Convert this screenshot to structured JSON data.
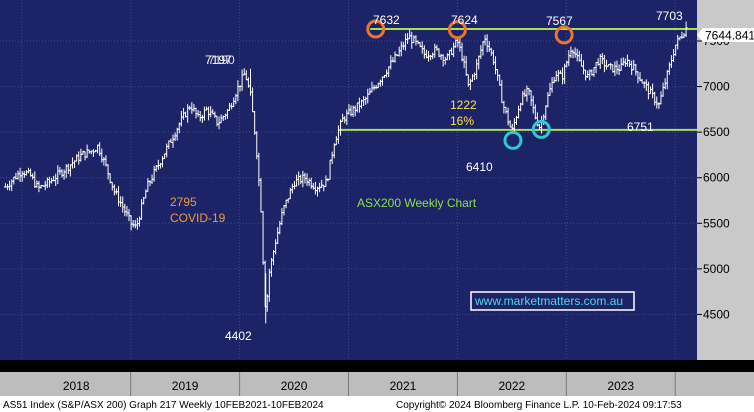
{
  "chart_data": {
    "type": "ohlc",
    "title": "ASX200 Weekly Chart",
    "website": "www.marketmatters.com.au",
    "ylim": [
      4000,
      7950
    ],
    "yticks": [
      4500,
      5000,
      5500,
      6000,
      6500,
      7000,
      7500
    ],
    "x_labels": [
      "2018",
      "2019",
      "2020",
      "2021",
      "2022",
      "2023"
    ],
    "last_price": "7644.841",
    "grid": true,
    "series_path": [
      [
        2017.85,
        5900
      ],
      [
        2018.0,
        6080
      ],
      [
        2018.08,
        6020
      ],
      [
        2018.15,
        5880
      ],
      [
        2018.25,
        5950
      ],
      [
        2018.4,
        6100
      ],
      [
        2018.55,
        6250
      ],
      [
        2018.65,
        6300
      ],
      [
        2018.7,
        6350
      ],
      [
        2018.78,
        6100
      ],
      [
        2018.85,
        5850
      ],
      [
        2018.92,
        5700
      ],
      [
        2019.0,
        5500
      ],
      [
        2019.05,
        5450
      ],
      [
        2019.15,
        5900
      ],
      [
        2019.3,
        6250
      ],
      [
        2019.45,
        6600
      ],
      [
        2019.55,
        6800
      ],
      [
        2019.62,
        6650
      ],
      [
        2019.7,
        6750
      ],
      [
        2019.8,
        6600
      ],
      [
        2019.9,
        6750
      ],
      [
        2019.97,
        6950
      ],
      [
        2020.05,
        7150
      ],
      [
        2020.1,
        6900
      ],
      [
        2020.15,
        6400
      ],
      [
        2020.2,
        5600
      ],
      [
        2020.22,
        4950
      ],
      [
        2020.24,
        4500
      ],
      [
        2020.27,
        4950
      ],
      [
        2020.33,
        5300
      ],
      [
        2020.4,
        5650
      ],
      [
        2020.5,
        5950
      ],
      [
        2020.6,
        6000
      ],
      [
        2020.7,
        5900
      ],
      [
        2020.8,
        5950
      ],
      [
        2020.87,
        6400
      ],
      [
        2020.95,
        6650
      ],
      [
        2021.05,
        6750
      ],
      [
        2021.15,
        6850
      ],
      [
        2021.3,
        7100
      ],
      [
        2021.45,
        7350
      ],
      [
        2021.55,
        7550
      ],
      [
        2021.6,
        7500
      ],
      [
        2021.7,
        7350
      ],
      [
        2021.8,
        7400
      ],
      [
        2021.9,
        7300
      ],
      [
        2022.0,
        7500
      ],
      [
        2022.05,
        7300
      ],
      [
        2022.1,
        7000
      ],
      [
        2022.17,
        7200
      ],
      [
        2022.25,
        7550
      ],
      [
        2022.33,
        7300
      ],
      [
        2022.42,
        6800
      ],
      [
        2022.5,
        6500
      ],
      [
        2022.58,
        6850
      ],
      [
        2022.65,
        6950
      ],
      [
        2022.72,
        6650
      ],
      [
        2022.76,
        6550
      ],
      [
        2022.82,
        6850
      ],
      [
        2022.9,
        7150
      ],
      [
        2022.96,
        7100
      ],
      [
        2023.05,
        7450
      ],
      [
        2023.1,
        7300
      ],
      [
        2023.2,
        7100
      ],
      [
        2023.3,
        7300
      ],
      [
        2023.4,
        7200
      ],
      [
        2023.5,
        7200
      ],
      [
        2023.55,
        7300
      ],
      [
        2023.62,
        7200
      ],
      [
        2023.7,
        7050
      ],
      [
        2023.8,
        6880
      ],
      [
        2023.85,
        6800
      ],
      [
        2023.92,
        7100
      ],
      [
        2024.0,
        7450
      ],
      [
        2024.05,
        7550
      ],
      [
        2024.1,
        7644
      ]
    ],
    "resistance_level": 7632,
    "support_level": 6525,
    "annotations": {
      "peak_2021": "7632",
      "peak_2022": "7624",
      "peak_2023": "7567",
      "high_2024": "7703",
      "covid_high": "7197",
      "covid_high_overlap": "7190",
      "covid_low": "4402",
      "covid_move": "2795",
      "covid_label": "COVID-19",
      "low_2022": "6410",
      "low_2023": "6751",
      "move_points": "1222",
      "move_pct": "16%"
    },
    "marker_points": [
      {
        "kind": "peak",
        "x": 2021.25,
        "y": 7632
      },
      {
        "kind": "peak",
        "x": 2022.0,
        "y": 7624
      },
      {
        "kind": "peak",
        "x": 2022.98,
        "y": 7567
      },
      {
        "kind": "trough",
        "x": 2022.51,
        "y": 6410
      },
      {
        "kind": "trough",
        "x": 2022.77,
        "y": 6530
      }
    ]
  },
  "footer": {
    "left": "AS51 Index (S&P/ASX 200) Graph 217  Weekly 10FEB2021-10FEB2024",
    "right": "Copyright© 2024 Bloomberg Finance L.P.     10-Feb-2024 09:17:53"
  },
  "colors": {
    "background": "#000000",
    "plot": "#1c2366",
    "grid": "#3b4a8c",
    "price": "#ffffff",
    "lines": "#a6e05a",
    "peak_marker": "#e8762c",
    "trough_marker": "#2ec9d1",
    "axis_bar": "#c9c9c9",
    "year_bar": "#bdbdbd",
    "last_price_bg": "#ffffff"
  }
}
